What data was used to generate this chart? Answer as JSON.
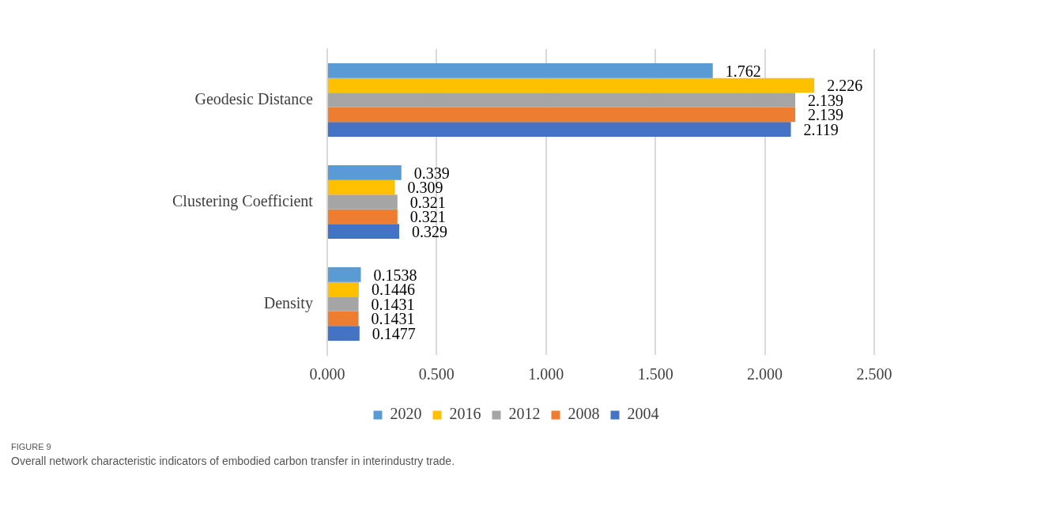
{
  "chart_data": {
    "type": "bar",
    "orientation": "horizontal",
    "categories": [
      "Geodesic Distance",
      "Clustering Coefficient",
      "Density"
    ],
    "series": [
      {
        "name": "2020",
        "color": "#5b9bd5",
        "values": [
          1.762,
          0.339,
          0.1538
        ]
      },
      {
        "name": "2016",
        "color": "#ffc000",
        "values": [
          2.226,
          0.309,
          0.1446
        ]
      },
      {
        "name": "2012",
        "color": "#a5a5a5",
        "values": [
          2.139,
          0.321,
          0.1431
        ]
      },
      {
        "name": "2008",
        "color": "#ed7d31",
        "values": [
          2.139,
          0.321,
          0.1431
        ]
      },
      {
        "name": "2004",
        "color": "#4472c4",
        "values": [
          2.119,
          0.329,
          0.1477
        ]
      }
    ],
    "xlim": [
      0,
      2.5
    ],
    "xticks": [
      {
        "value": 0,
        "label": "0.000"
      },
      {
        "value": 0.5,
        "label": "0.500"
      },
      {
        "value": 1,
        "label": "1.000"
      },
      {
        "value": 1.5,
        "label": "1.500"
      },
      {
        "value": 2,
        "label": "2.000"
      },
      {
        "value": 2.5,
        "label": "2.500"
      }
    ],
    "grid": "x",
    "legend": "bottom",
    "data_labels": true,
    "annotations": [
      "FIGURE 9",
      "Overall network characteristic indicators of embodied carbon transfer in interindustry trade."
    ]
  }
}
